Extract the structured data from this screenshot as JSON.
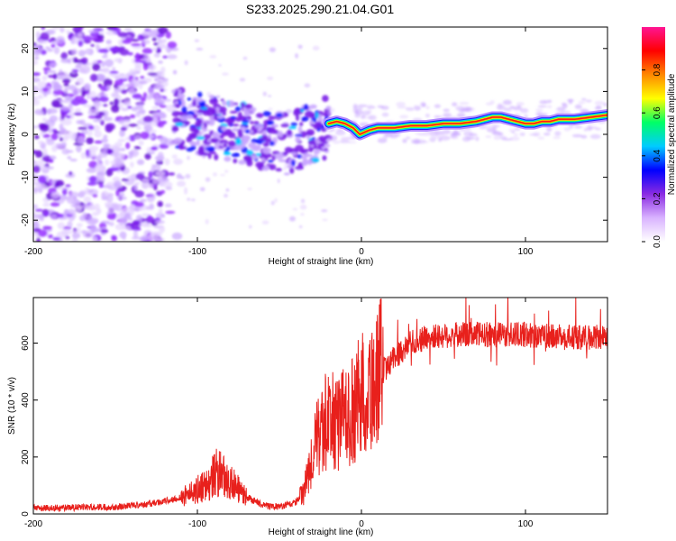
{
  "chart_data": [
    {
      "type": "heatmap",
      "title": "S233.2025.290.21.04.G01",
      "xlabel": "Height of straight line (km)",
      "ylabel": "Frequency (Hz)",
      "xlim": [
        -200,
        150
      ],
      "ylim": [
        -25,
        25
      ],
      "xticks": [
        -200,
        -100,
        0,
        100
      ],
      "yticks": [
        -20,
        -10,
        0,
        10,
        20
      ],
      "colorbar": {
        "label": "Normalized spectral amplitude",
        "range": [
          0.0,
          1.0
        ],
        "ticks": [
          0.0,
          0.2,
          0.4,
          0.6,
          0.8
        ],
        "colors": [
          "#ffffff",
          "#d9b3ff",
          "#8a2be2",
          "#0000ff",
          "#00ccff",
          "#00ff66",
          "#ffff00",
          "#ff8800",
          "#ff0000",
          "#ff1493"
        ]
      },
      "ridge": {
        "x": [
          -20,
          -15,
          -10,
          -5,
          -1,
          5,
          10,
          20,
          30,
          40,
          50,
          60,
          70,
          75,
          80,
          85,
          90,
          95,
          100,
          105,
          110,
          115,
          120,
          130,
          140,
          150
        ],
        "y": [
          2.5,
          3,
          2.5,
          1.5,
          0,
          1,
          1.5,
          1.5,
          2,
          2,
          2.5,
          2.5,
          3,
          3.5,
          4,
          4,
          3.5,
          3,
          2.5,
          2.5,
          3,
          3,
          3.5,
          3.5,
          4,
          4.5
        ]
      }
    },
    {
      "type": "line",
      "xlabel": "Height of straight line (km)",
      "ylabel": "SNR (10 * v/v)",
      "xlim": [
        -200,
        150
      ],
      "ylim": [
        0,
        760
      ],
      "xticks": [
        -200,
        -100,
        0,
        100
      ],
      "yticks": [
        0,
        200,
        400,
        600
      ],
      "series": [
        {
          "name": "SNR",
          "color": "#e8201c",
          "envelope_x": [
            -200,
            -150,
            -130,
            -115,
            -105,
            -95,
            -88,
            -80,
            -70,
            -60,
            -50,
            -40,
            -35,
            -30,
            -25,
            -20,
            -15,
            -10,
            -5,
            0,
            10,
            20,
            30,
            40,
            60,
            80,
            100,
            120,
            150
          ],
          "envelope_y": [
            20,
            25,
            35,
            50,
            70,
            100,
            150,
            110,
            60,
            30,
            25,
            40,
            80,
            200,
            300,
            330,
            320,
            340,
            360,
            420,
            480,
            550,
            600,
            620,
            630,
            630,
            630,
            620,
            620
          ]
        }
      ]
    }
  ]
}
